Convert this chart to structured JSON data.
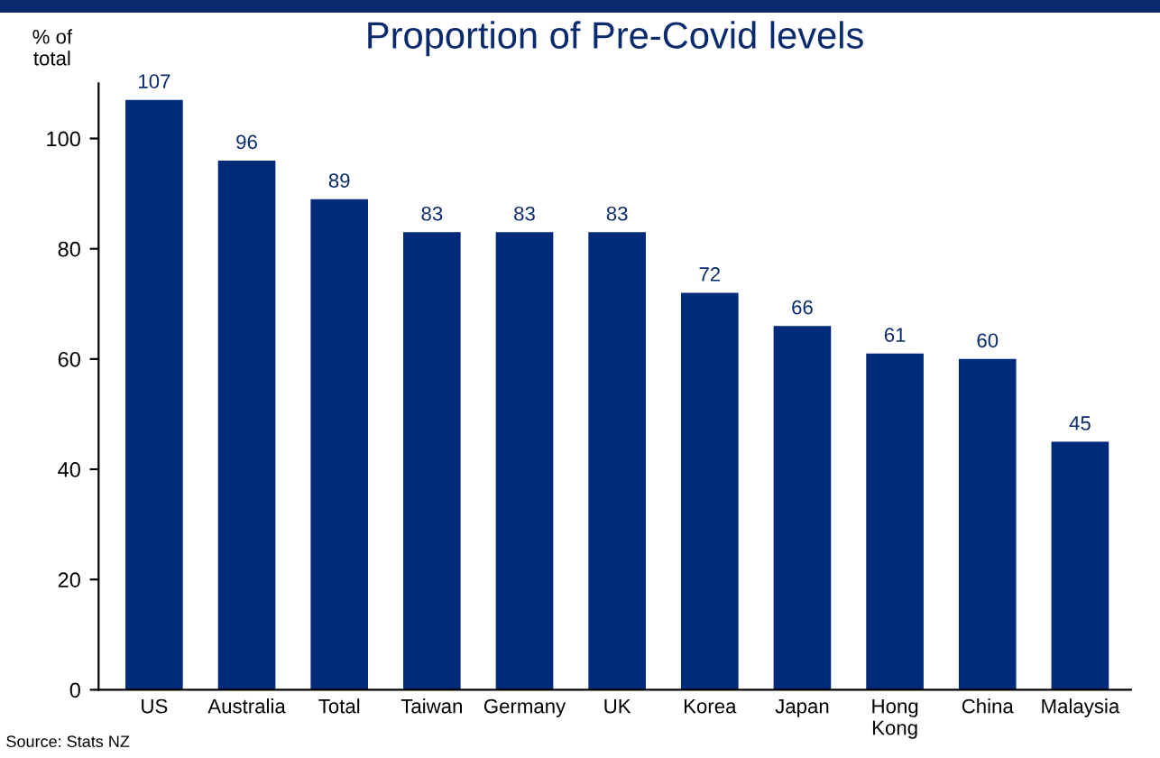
{
  "chart_data": {
    "type": "bar",
    "title": "Proportion of Pre-Covid levels",
    "ylabel": "% of\ntotal",
    "categories": [
      "US",
      "Australia",
      "Total",
      "Taiwan",
      "Germany",
      "UK",
      "Korea",
      "Japan",
      "Hong\nKong",
      "China",
      "Malaysia"
    ],
    "values": [
      107,
      96,
      89,
      83,
      83,
      83,
      72,
      66,
      61,
      60,
      45
    ],
    "color": "#002b7a",
    "data_labels": true,
    "ylim": [
      0,
      110
    ],
    "yticks": [
      0,
      20,
      40,
      60,
      80,
      100
    ],
    "grid": false,
    "annotations": [
      "Source: Stats NZ"
    ]
  }
}
